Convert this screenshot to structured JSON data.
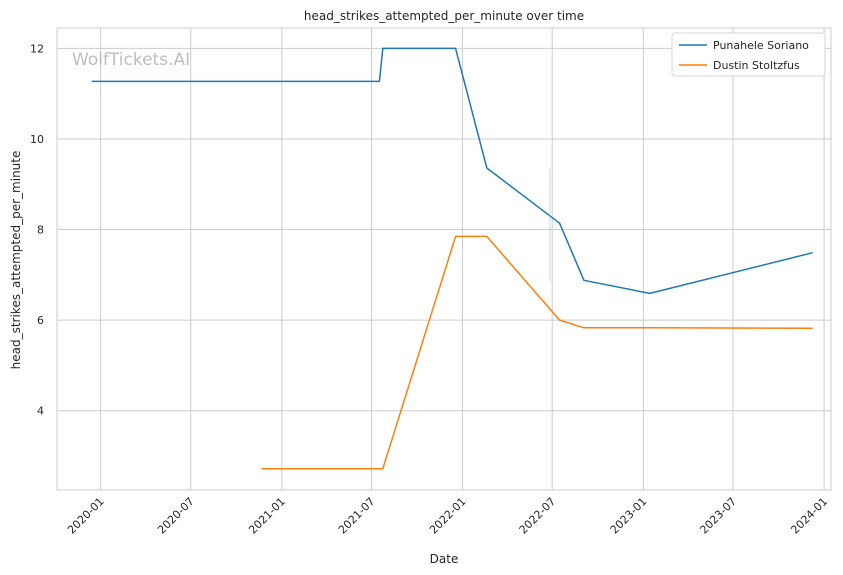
{
  "chart_data": {
    "type": "line",
    "title": "head_strikes_attempted_per_minute over time",
    "xlabel": "Date",
    "ylabel": "head_strikes_attempted_per_minute",
    "watermark": "WolfTickets.AI",
    "xlim": [
      "2019-10-05",
      "2024-01-15"
    ],
    "ylim": [
      2.25,
      12.45
    ],
    "x_ticks": [
      "2020-01-01",
      "2020-07-01",
      "2021-01-01",
      "2021-07-01",
      "2022-01-01",
      "2022-07-01",
      "2023-01-01",
      "2023-07-01",
      "2024-01-01"
    ],
    "x_tick_labels": [
      "2020-01",
      "2020-07",
      "2021-01",
      "2021-07",
      "2022-01",
      "2022-07",
      "2023-01",
      "2023-07",
      "2024-01"
    ],
    "y_ticks": [
      4,
      6,
      8,
      10,
      12
    ],
    "y_tick_labels": [
      "4",
      "6",
      "8",
      "10",
      "12"
    ],
    "grid": true,
    "legend_position": "top-right",
    "series": [
      {
        "name": "Punahele Soriano",
        "color": "#1f77b4",
        "x": [
          "2019-12-14",
          "2021-07-17",
          "2021-07-24",
          "2021-12-18",
          "2022-02-19",
          "2022-07-16",
          "2022-09-03",
          "2023-01-14",
          "2023-12-09"
        ],
        "y": [
          11.27,
          11.27,
          12.0,
          12.0,
          9.36,
          8.14,
          6.88,
          6.59,
          7.49
        ]
      },
      {
        "name": "Dustin Stoltzfus",
        "color": "#ff7f0e",
        "x": [
          "2020-11-21",
          "2021-07-24",
          "2021-12-18",
          "2022-02-19",
          "2022-07-16",
          "2022-09-03",
          "2023-01-14",
          "2023-12-09"
        ],
        "y": [
          2.72,
          2.72,
          7.85,
          7.85,
          6.0,
          5.83,
          5.83,
          5.82
        ]
      }
    ]
  }
}
